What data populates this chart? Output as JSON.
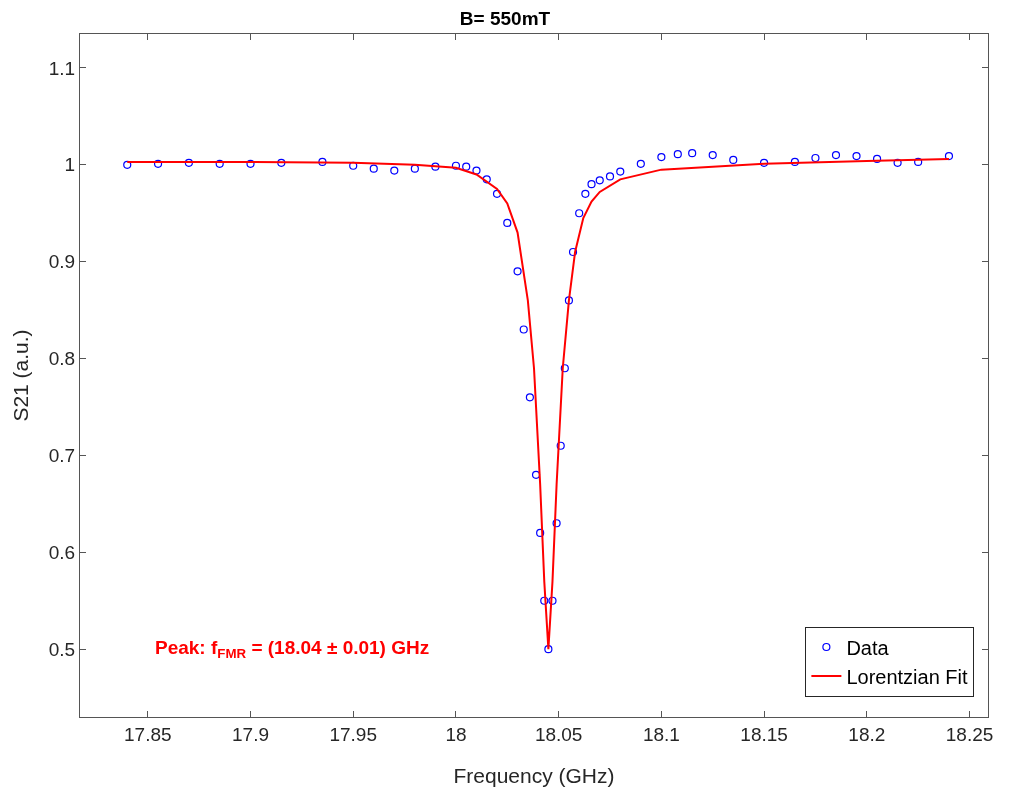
{
  "chart_data": {
    "type": "scatter",
    "title": "B= 550mT",
    "xlabel": "Frequency (GHz)",
    "ylabel": "S21 (a.u.)",
    "xlim": [
      17.817,
      18.259
    ],
    "xticks": [
      17.85,
      17.9,
      17.95,
      18,
      18.05,
      18.1,
      18.15,
      18.2,
      18.25
    ],
    "ylim": [
      0.43,
      1.135
    ],
    "yticks": [
      0.5,
      0.6,
      0.7,
      0.8,
      0.9,
      1,
      1.1
    ],
    "grid": false,
    "legend": "bottom right",
    "annotations": [
      "Peak: f$_{FMR}$ = (18.04 ± 0.01) GHz"
    ],
    "series": [
      {
        "name": "Data",
        "marker": "circle",
        "color": "#0000ff",
        "x": [
          17.84,
          17.855,
          17.87,
          17.885,
          17.9,
          17.915,
          17.935,
          17.95,
          17.96,
          17.97,
          17.98,
          17.99,
          18.0,
          18.005,
          18.01,
          18.015,
          18.02,
          18.025,
          18.03,
          18.033,
          18.036,
          18.039,
          18.041,
          18.043,
          18.045,
          18.047,
          18.049,
          18.051,
          18.053,
          18.055,
          18.057,
          18.06,
          18.063,
          18.066,
          18.07,
          18.075,
          18.08,
          18.09,
          18.1,
          18.108,
          18.115,
          18.125,
          18.135,
          18.15,
          18.165,
          18.175,
          18.185,
          18.195,
          18.205,
          18.215,
          18.225,
          18.24
        ],
        "values": [
          1.0,
          1.001,
          1.002,
          1.001,
          1.001,
          1.002,
          1.003,
          0.999,
          0.996,
          0.994,
          0.996,
          0.998,
          0.999,
          0.998,
          0.994,
          0.985,
          0.97,
          0.94,
          0.89,
          0.83,
          0.76,
          0.68,
          0.62,
          0.55,
          0.5,
          0.55,
          0.63,
          0.71,
          0.79,
          0.86,
          0.91,
          0.95,
          0.97,
          0.98,
          0.984,
          0.988,
          0.993,
          1.001,
          1.008,
          1.011,
          1.012,
          1.01,
          1.005,
          1.002,
          1.003,
          1.007,
          1.01,
          1.009,
          1.006,
          1.002,
          1.003,
          1.009
        ]
      },
      {
        "name": "Lorentzian Fit",
        "type": "line",
        "marker": "none",
        "line_style": "solid",
        "color": "#ff0000",
        "x": [
          17.84,
          17.9,
          17.95,
          17.98,
          18.0,
          18.01,
          18.02,
          18.025,
          18.03,
          18.035,
          18.038,
          18.041,
          18.043,
          18.045,
          18.047,
          18.049,
          18.052,
          18.055,
          18.058,
          18.062,
          18.066,
          18.07,
          18.08,
          18.1,
          18.15,
          18.2,
          18.24
        ],
        "values": [
          1.003,
          1.003,
          1.002,
          1.0,
          0.997,
          0.99,
          0.975,
          0.96,
          0.93,
          0.86,
          0.79,
          0.67,
          0.57,
          0.5,
          0.57,
          0.67,
          0.79,
          0.86,
          0.91,
          0.945,
          0.962,
          0.972,
          0.985,
          0.995,
          1.001,
          1.004,
          1.006
        ]
      }
    ]
  }
}
